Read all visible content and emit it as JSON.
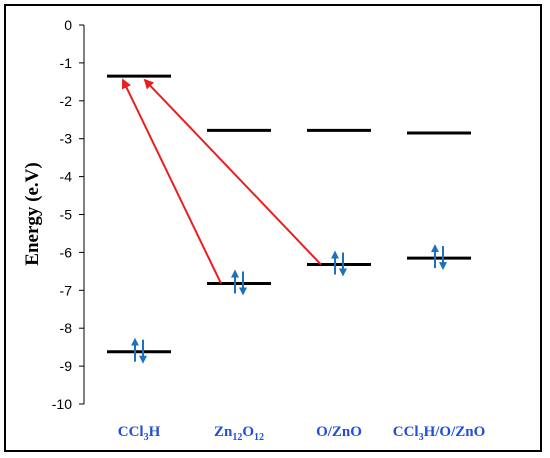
{
  "chart_data": {
    "type": "energy-level-diagram",
    "ylabel": "Energy (e.V)",
    "ylim": [
      -10,
      0
    ],
    "yticks": [
      "0",
      "-1",
      "-2",
      "-3",
      "-4",
      "-5",
      "-6",
      "-7",
      "-8",
      "-9",
      "-10"
    ],
    "categories": [
      {
        "base": "CCl",
        "sub": "3",
        "mid": "H",
        "sub2": "",
        "tail": ""
      },
      {
        "base": "Zn",
        "sub": "12",
        "mid": "O",
        "sub2": "12",
        "tail": ""
      },
      {
        "base": "O/ZnO",
        "sub": "",
        "mid": "",
        "sub2": "",
        "tail": ""
      },
      {
        "base": "CCl",
        "sub": "3",
        "mid": "H/O/ZnO",
        "sub2": "",
        "tail": ""
      }
    ],
    "levels": {
      "lumo": [
        -1.35,
        -2.78,
        -2.78,
        -2.85
      ],
      "homo": [
        -8.62,
        -6.82,
        -6.32,
        -6.15
      ]
    },
    "transitions": [
      {
        "from_category": 1,
        "from": "homo",
        "to_category": 0,
        "to": "lumo"
      },
      {
        "from_category": 2,
        "from": "homo",
        "to_category": 0,
        "to": "lumo"
      }
    ],
    "colors": {
      "level": "#000000",
      "arrow": "#e82020",
      "spin": "#1e6fbf",
      "category_text": "#1f4fd6"
    }
  }
}
